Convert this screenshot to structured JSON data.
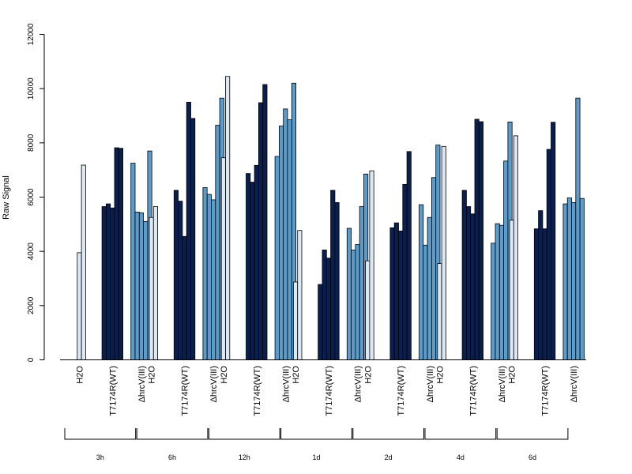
{
  "chart_data": {
    "type": "bar",
    "ylabel": "Raw Signal",
    "xlabel": "",
    "ylim": [
      0,
      12000
    ],
    "yticks": [
      0,
      2000,
      4000,
      6000,
      8000,
      10000,
      12000
    ],
    "group_labels": [
      "H2O",
      "T7174R(WT)",
      "ΔhrcV(III)"
    ],
    "timepoints": [
      "3h",
      "6h",
      "12h",
      "1d",
      "2d",
      "4d",
      "6d"
    ],
    "colors": {
      "H2O": "#dce8f4",
      "T7174R(WT)": "#0b1f4f",
      "ΔhrcV(III)": "#5a9ccb"
    },
    "series": [
      {
        "timepoint": "3h",
        "H2O": [
          0,
          3950,
          7180
        ],
        "T7174R(WT)": [
          5650,
          5750,
          5600,
          7820,
          7800
        ],
        "ΔhrcV(III)": [
          7250,
          5450,
          5420,
          5100,
          7700
        ]
      },
      {
        "timepoint": "6h",
        "H2O": [
          0,
          5250,
          5650
        ],
        "T7174R(WT)": [
          6250,
          5850,
          4550,
          9500,
          8900
        ],
        "ΔhrcV(III)": [
          6350,
          6100,
          5900,
          8650,
          9650
        ]
      },
      {
        "timepoint": "12h",
        "H2O": [
          0,
          7450,
          10450
        ],
        "T7174R(WT)": [
          6870,
          6550,
          7170,
          9480,
          10150
        ],
        "ΔhrcV(III)": [
          7500,
          8620,
          9250,
          8850,
          10200
        ]
      },
      {
        "timepoint": "1d",
        "H2O": [
          0,
          2870,
          4770
        ],
        "T7174R(WT)": [
          2780,
          4050,
          3750,
          6250,
          5800
        ],
        "ΔhrcV(III)": [
          4850,
          4050,
          4250,
          5650,
          6850
        ]
      },
      {
        "timepoint": "2d",
        "H2O": [
          0,
          3650,
          6970
        ],
        "T7174R(WT)": [
          4870,
          5050,
          4750,
          6470,
          7680
        ],
        "ΔhrcV(III)": [
          5720,
          4230,
          5250,
          6720,
          7920
        ]
      },
      {
        "timepoint": "4d",
        "H2O": [
          0,
          3550,
          7870
        ],
        "T7174R(WT)": [
          6250,
          5650,
          5380,
          8870,
          8780
        ],
        "ΔhrcV(III)": [
          4300,
          5020,
          4960,
          7330,
          8770
        ]
      },
      {
        "timepoint": "6d",
        "H2O": [
          0,
          5150,
          8260
        ],
        "T7174R(WT)": [
          4830,
          5500,
          4830,
          7760,
          8760
        ],
        "ΔhrcV(III)": [
          5750,
          5970,
          5800,
          9650,
          5950
        ]
      }
    ]
  }
}
